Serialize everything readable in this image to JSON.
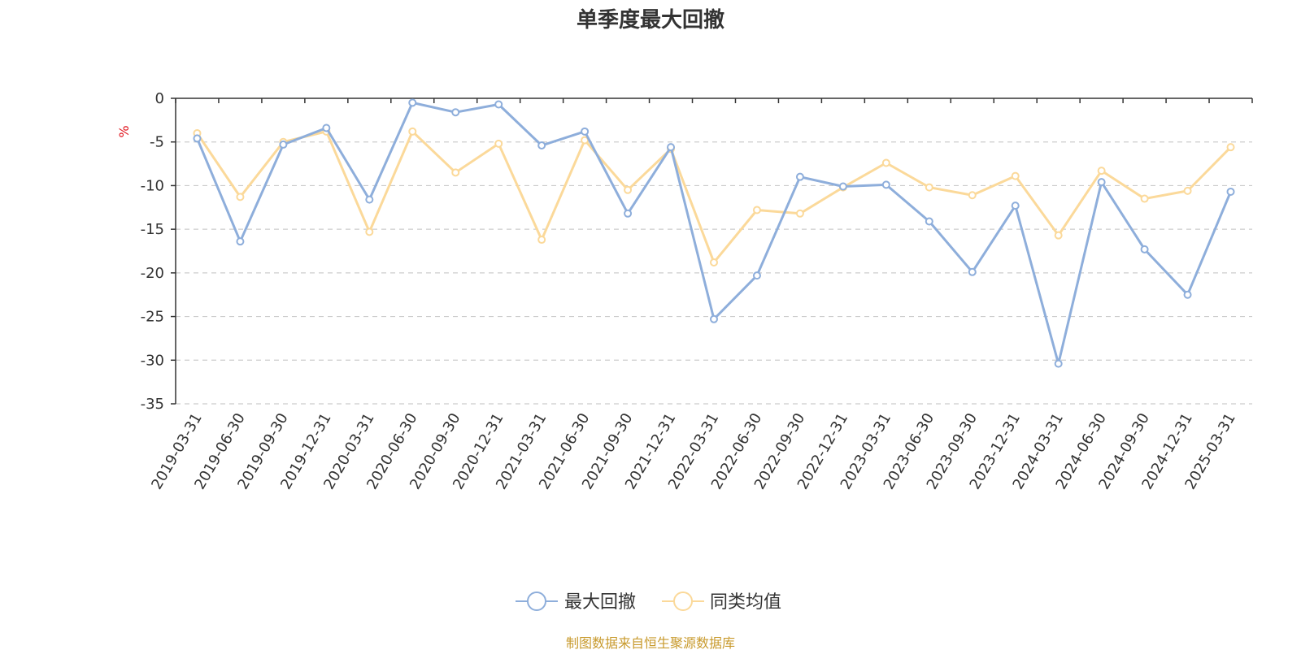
{
  "chart_data": {
    "type": "line",
    "title": "单季度最大回撤",
    "ylabel": "%",
    "ylim": [
      -35,
      0
    ],
    "yticks": [
      0,
      -5,
      -10,
      -15,
      -20,
      -25,
      -30,
      -35
    ],
    "grid": true,
    "legend_position": "bottom",
    "categories": [
      "2019-03-31",
      "2019-06-30",
      "2019-09-30",
      "2019-12-31",
      "2020-03-31",
      "2020-06-30",
      "2020-09-30",
      "2020-12-31",
      "2021-03-31",
      "2021-06-30",
      "2021-09-30",
      "2021-12-31",
      "2022-03-31",
      "2022-06-30",
      "2022-09-30",
      "2022-12-31",
      "2023-03-31",
      "2023-06-30",
      "2023-09-30",
      "2023-12-31",
      "2024-03-31",
      "2024-06-30",
      "2024-09-30",
      "2024-12-31",
      "2025-03-31"
    ],
    "series": [
      {
        "name": "最大回撤",
        "color": "#8eaedb",
        "values": [
          -4.6,
          -16.4,
          -5.3,
          -3.4,
          -11.6,
          -0.5,
          -1.6,
          -0.7,
          -5.4,
          -3.8,
          -13.2,
          -5.6,
          -25.3,
          -20.3,
          -9.0,
          -10.1,
          -9.9,
          -14.1,
          -19.9,
          -12.3,
          -30.4,
          -9.6,
          -17.3,
          -22.5,
          -10.7
        ]
      },
      {
        "name": "同类均值",
        "color": "#fbd99a",
        "values": [
          -4.0,
          -11.3,
          -5.0,
          -3.8,
          -15.3,
          -3.8,
          -8.5,
          -5.2,
          -16.2,
          -4.8,
          -10.5,
          -5.8,
          -18.8,
          -12.8,
          -13.2,
          -10.2,
          -7.4,
          -10.2,
          -11.1,
          -8.9,
          -15.7,
          -8.3,
          -11.5,
          -10.6,
          -5.6
        ]
      }
    ]
  },
  "colors": {
    "axis": "#333333",
    "grid": "#cccccc",
    "unit": "#e0141d",
    "source": "#c89a2d"
  },
  "footer": {
    "source_text": "制图数据来自恒生聚源数据库"
  }
}
